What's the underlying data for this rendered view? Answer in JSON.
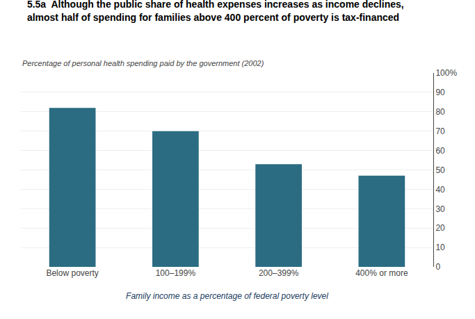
{
  "chart_data": {
    "type": "bar",
    "title": "5.5a  Although the public share of health expenses increases as income declines,\nalmost half of spending for families above 400 percent of poverty is tax-financed",
    "subtitle": "Percentage of personal health spending paid by the government (2002)",
    "xlabel": "Family income as a percentage of federal poverty level",
    "categories": [
      "Below poverty",
      "100–199%",
      "200–399%",
      "400% or more"
    ],
    "values": [
      82,
      70,
      53,
      47
    ],
    "color": "#2b6c82",
    "ylim": [
      0,
      100
    ],
    "yticks": [
      0,
      10,
      20,
      30,
      40,
      50,
      60,
      70,
      80,
      90,
      {
        "value": 100,
        "label": "100%"
      }
    ],
    "grid": true
  }
}
